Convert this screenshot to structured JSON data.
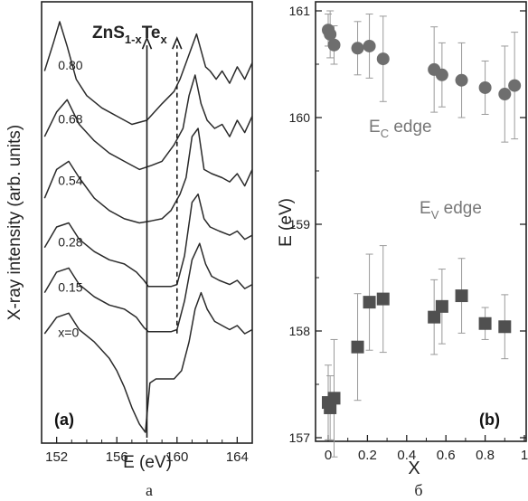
{
  "chart_data": [
    {
      "type": "line",
      "panel_label": "(a)",
      "title_parts": {
        "base": "ZnS",
        "sub1": "1-x",
        "mid": "Te",
        "sub2": "x"
      },
      "xlabel": "E (eV)",
      "ylabel": "X-ray intensity (arb. units)",
      "xlim": [
        151,
        165
      ],
      "xticks": [
        "152",
        "156",
        "160",
        "164"
      ],
      "xtick_values": [
        152,
        156,
        160,
        164
      ],
      "annotations": [
        {
          "style": "solid-arrow",
          "x": 158.0
        },
        {
          "style": "dashed-arrow",
          "x": 160.0
        }
      ],
      "series": [
        {
          "name": "0.80",
          "x": [
            151.2,
            151.8,
            152.2,
            152.7,
            153.3,
            154.0,
            155.0,
            156.0,
            157.0,
            158.0,
            159.0,
            159.8,
            160.2,
            160.6,
            161.0,
            161.3,
            161.6,
            161.9,
            162.2,
            162.6,
            163.0,
            163.5,
            164.0,
            164.5,
            165.0
          ],
          "y": [
            0.88,
            0.95,
            1.0,
            0.94,
            0.86,
            0.82,
            0.79,
            0.77,
            0.75,
            0.76,
            0.8,
            0.83,
            0.86,
            0.9,
            0.94,
            0.97,
            0.93,
            0.89,
            0.88,
            0.86,
            0.88,
            0.85,
            0.89,
            0.86,
            0.9
          ]
        },
        {
          "name": "0.68",
          "x": [
            151.2,
            152.0,
            152.7,
            153.5,
            154.5,
            155.5,
            156.5,
            157.5,
            158.3,
            159.0,
            159.8,
            160.4,
            160.8,
            161.2,
            161.6,
            162.0,
            162.5,
            163.0,
            163.5,
            164.0,
            164.5,
            165.0
          ],
          "y": [
            0.72,
            0.78,
            0.81,
            0.75,
            0.71,
            0.68,
            0.66,
            0.64,
            0.65,
            0.66,
            0.7,
            0.74,
            0.82,
            0.87,
            0.8,
            0.76,
            0.74,
            0.75,
            0.72,
            0.76,
            0.73,
            0.77
          ]
        },
        {
          "name": "0.54",
          "x": [
            151.2,
            152.0,
            152.8,
            153.5,
            154.5,
            155.5,
            156.5,
            157.5,
            158.3,
            159.0,
            159.6,
            160.2,
            160.6,
            161.0,
            161.4,
            161.8,
            162.3,
            163.0,
            163.5,
            164.0,
            164.5,
            165.0
          ],
          "y": [
            0.57,
            0.64,
            0.66,
            0.62,
            0.57,
            0.54,
            0.52,
            0.51,
            0.515,
            0.52,
            0.54,
            0.58,
            0.62,
            0.72,
            0.74,
            0.64,
            0.63,
            0.62,
            0.61,
            0.63,
            0.6,
            0.64
          ]
        },
        {
          "name": "0.28",
          "x": [
            151.2,
            152.0,
            152.8,
            153.5,
            154.5,
            155.5,
            156.5,
            157.3,
            157.8,
            158.1,
            158.5,
            159.0,
            159.6,
            160.0,
            160.5,
            161.0,
            161.4,
            161.8,
            162.2,
            162.8,
            163.5,
            164.0,
            164.5,
            165.0
          ],
          "y": [
            0.45,
            0.5,
            0.51,
            0.47,
            0.44,
            0.42,
            0.41,
            0.39,
            0.37,
            0.355,
            0.355,
            0.355,
            0.355,
            0.36,
            0.43,
            0.56,
            0.58,
            0.52,
            0.5,
            0.49,
            0.48,
            0.49,
            0.47,
            0.48
          ]
        },
        {
          "name": "0.15",
          "x": [
            151.2,
            152.0,
            152.8,
            153.5,
            154.5,
            155.5,
            156.5,
            157.3,
            157.8,
            158.1,
            158.5,
            159.0,
            159.6,
            160.0,
            160.5,
            161.0,
            161.5,
            161.9,
            162.3,
            162.8,
            163.5,
            164.0,
            164.5,
            165.0
          ],
          "y": [
            0.34,
            0.39,
            0.4,
            0.36,
            0.33,
            0.31,
            0.3,
            0.28,
            0.255,
            0.245,
            0.245,
            0.245,
            0.245,
            0.25,
            0.32,
            0.42,
            0.46,
            0.41,
            0.38,
            0.37,
            0.36,
            0.37,
            0.35,
            0.36
          ]
        },
        {
          "name": "x=0",
          "x": [
            151.2,
            152.0,
            152.8,
            153.5,
            154.5,
            155.5,
            156.0,
            156.5,
            157.0,
            157.5,
            157.9,
            158.2,
            158.6,
            159.2,
            159.8,
            160.3,
            160.8,
            161.2,
            161.6,
            162.0,
            162.5,
            163.0,
            163.5,
            164.0,
            164.5,
            165.0
          ],
          "y": [
            0.24,
            0.28,
            0.29,
            0.25,
            0.22,
            0.18,
            0.15,
            0.11,
            0.06,
            0.02,
            0.0,
            0.12,
            0.13,
            0.13,
            0.13,
            0.15,
            0.22,
            0.3,
            0.34,
            0.3,
            0.27,
            0.26,
            0.25,
            0.26,
            0.24,
            0.25
          ]
        }
      ]
    },
    {
      "type": "scatter",
      "panel_label": "(b)",
      "xlabel": "X",
      "ylabel": "E (eV)",
      "xlim": [
        -0.05,
        1.0
      ],
      "ylim": [
        157,
        161
      ],
      "xticks": [
        "0",
        "0.2",
        "0.4",
        "0.6",
        "0.8",
        "1"
      ],
      "xtick_values": [
        0,
        0.2,
        0.4,
        0.6,
        0.8,
        1.0
      ],
      "yticks": [
        "157",
        "158",
        "159",
        "160",
        "161"
      ],
      "ytick_values": [
        157,
        158,
        159,
        160,
        161
      ],
      "series": [
        {
          "name_parts": {
            "base": "E",
            "sub": "C",
            "rest": " edge"
          },
          "marker": "circle",
          "color": "#6e6e6e",
          "x": [
            0.0,
            0.01,
            0.03,
            0.15,
            0.21,
            0.28,
            0.54,
            0.58,
            0.68,
            0.8,
            0.9,
            0.95
          ],
          "y": [
            160.82,
            160.78,
            160.68,
            160.65,
            160.67,
            160.55,
            160.45,
            160.4,
            160.35,
            160.28,
            160.22,
            160.3
          ],
          "err": [
            0.15,
            0.22,
            0.18,
            0.25,
            0.3,
            0.4,
            0.4,
            0.3,
            0.35,
            0.25,
            0.45,
            0.5
          ]
        },
        {
          "name_parts": {
            "base": "E",
            "sub": "V",
            "rest": " edge"
          },
          "marker": "square",
          "color": "#505050",
          "x": [
            0.0,
            0.01,
            0.03,
            0.15,
            0.21,
            0.28,
            0.54,
            0.58,
            0.68,
            0.8,
            0.9
          ],
          "y": [
            157.33,
            157.28,
            157.37,
            157.85,
            158.27,
            158.3,
            158.13,
            158.23,
            158.33,
            158.07,
            158.04
          ],
          "err": [
            0.35,
            0.3,
            0.55,
            0.5,
            0.45,
            0.5,
            0.35,
            0.35,
            0.35,
            0.15,
            0.3
          ]
        }
      ]
    }
  ],
  "captions": {
    "left": "а",
    "right": "б"
  }
}
